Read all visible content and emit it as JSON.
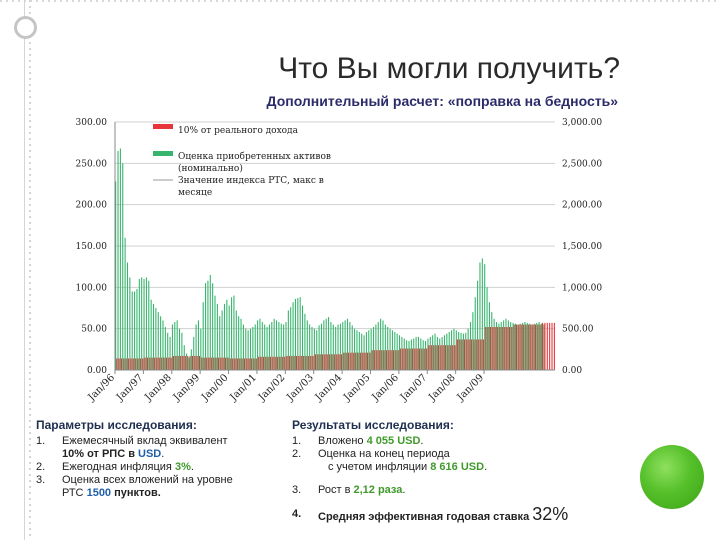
{
  "slide": {
    "title": "Что Вы могли получить?",
    "subtitle": "Дополнительный расчет: «поправка на бедность»"
  },
  "colors": {
    "contribution": "#e8353b",
    "assets": "#37b56d",
    "index_line": "#999999",
    "deco_ball": "#55c02a"
  },
  "chart_data": {
    "type": "bar",
    "x_tick_labels": [
      "Jan/96",
      "Jan/97",
      "Jan/98",
      "Jan/99",
      "Jan/00",
      "Jan/01",
      "Jan/02",
      "Jan/03",
      "Jan/04",
      "Jan/05",
      "Jan/06",
      "Jan/07",
      "Jan/08",
      "Jan/09"
    ],
    "y_left": {
      "range": [
        0,
        300
      ],
      "ticks": [
        "0.00",
        "50.00",
        "100.00",
        "150.00",
        "200.00",
        "250.00",
        "300.00"
      ]
    },
    "y_right": {
      "range": [
        0,
        3000
      ],
      "ticks": [
        "0.00",
        "500.00",
        "1,000.00",
        "1,500.00",
        "2,000.00",
        "2,500.00",
        "3,000.00"
      ]
    },
    "legend": [
      {
        "name": "10% от реального дохода",
        "color": "#e8353b"
      },
      {
        "name_lines": [
          "Оценка приобретенных активов",
          "(номинально)"
        ],
        "color": "#37b56d"
      },
      {
        "name_lines": [
          "Значение индекса РТС, макс в",
          "месяце"
        ],
        "color": "#999999"
      }
    ],
    "series": [
      {
        "name": "10% от реального дохода",
        "axis": "left",
        "values": [
          14,
          14,
          14,
          14,
          14,
          14,
          14,
          14,
          14,
          14,
          14,
          14,
          15,
          15,
          15,
          15,
          15,
          15,
          15,
          15,
          15,
          15,
          15,
          15,
          17,
          17,
          17,
          17,
          17,
          17,
          17,
          17,
          17,
          17,
          17,
          17,
          15,
          15,
          15,
          15,
          15,
          15,
          15,
          15,
          15,
          15,
          15,
          15,
          14,
          14,
          14,
          14,
          14,
          14,
          14,
          14,
          14,
          14,
          14,
          14,
          16,
          16,
          16,
          16,
          16,
          16,
          16,
          16,
          16,
          16,
          16,
          16,
          17,
          17,
          17,
          17,
          17,
          17,
          17,
          17,
          17,
          17,
          17,
          17,
          19,
          19,
          19,
          19,
          19,
          19,
          19,
          19,
          19,
          19,
          19,
          19,
          21,
          21,
          21,
          21,
          21,
          21,
          21,
          21,
          21,
          21,
          21,
          21,
          24,
          24,
          24,
          24,
          24,
          24,
          24,
          24,
          24,
          24,
          24,
          24,
          26,
          26,
          26,
          26,
          26,
          26,
          26,
          26,
          26,
          26,
          26,
          26,
          30,
          30,
          30,
          30,
          30,
          30,
          30,
          30,
          30,
          30,
          30,
          30,
          37,
          37,
          37,
          37,
          37,
          37,
          37,
          37,
          37,
          37,
          37,
          37,
          52,
          52,
          52,
          52,
          52,
          52,
          52,
          52,
          52,
          52,
          52,
          52,
          55,
          55,
          55,
          55,
          55,
          55,
          55,
          55,
          55,
          55,
          55,
          55,
          57,
          57,
          57,
          57,
          57,
          57
        ]
      },
      {
        "name": "Оценка приобретенных активов (номинально)",
        "axis": "left",
        "values": [
          228,
          265,
          268,
          250,
          160,
          130,
          112,
          95,
          95,
          98,
          110,
          112,
          110,
          112,
          108,
          85,
          80,
          75,
          70,
          65,
          60,
          52,
          45,
          40,
          55,
          58,
          60,
          50,
          45,
          30,
          20,
          15,
          25,
          40,
          55,
          60,
          50,
          82,
          105,
          108,
          115,
          105,
          90,
          80,
          65,
          72,
          80,
          85,
          78,
          88,
          90,
          72,
          65,
          62,
          55,
          50,
          48,
          50,
          52,
          55,
          60,
          62,
          58,
          55,
          52,
          55,
          58,
          62,
          60,
          58,
          56,
          55,
          58,
          72,
          76,
          82,
          86,
          87,
          88,
          78,
          68,
          60,
          55,
          52,
          50,
          48,
          54,
          56,
          60,
          62,
          64,
          58,
          55,
          52,
          55,
          56,
          58,
          60,
          62,
          58,
          54,
          50,
          48,
          46,
          44,
          42,
          46,
          48,
          50,
          52,
          55,
          58,
          62,
          60,
          55,
          52,
          50,
          48,
          46,
          44,
          42,
          40,
          38,
          36,
          35,
          37,
          38,
          40,
          40,
          38,
          36,
          35,
          38,
          40,
          42,
          44,
          40,
          38,
          40,
          42,
          44,
          46,
          48,
          50,
          48,
          46,
          45,
          44,
          45,
          50,
          58,
          70,
          88,
          108,
          130,
          135,
          128,
          100,
          82,
          70,
          62,
          58,
          56,
          58,
          60,
          62,
          60,
          58,
          57,
          56,
          55,
          56,
          57,
          58,
          57,
          56,
          55,
          56,
          57,
          58,
          56,
          55
        ]
      }
    ]
  },
  "left_section": {
    "heading": "Параметры исследования:",
    "items": [
      {
        "num": "1.",
        "line1": "Ежемесячный вклад эквивалент",
        "line2_prefix": "10% от РПС в",
        "line2_value": "USD",
        "line2_suffix": "."
      },
      {
        "num": "2.",
        "text_prefix": "Ежегодная инфляция",
        "value": "3%",
        "text_suffix": "."
      },
      {
        "num": "3.",
        "line1": "Оценка всех вложений на уровне",
        "line2_prefix": "РТС",
        "line2_value": "1500",
        "line2_suffix": "пунктов."
      }
    ]
  },
  "right_section": {
    "heading": "Результаты исследования:",
    "items": [
      {
        "num": "1.",
        "text_prefix": "Вложено",
        "value": "4 055 USD",
        "text_suffix": "."
      },
      {
        "num": "2.",
        "line1": "Оценка на конец периода",
        "line2_prefix": "с учетом инфляции",
        "line2_value": "8 616 USD",
        "line2_suffix": "."
      },
      {
        "num": "3.",
        "text_prefix": "Рост в",
        "value": "2,12 раза",
        "text_suffix": "."
      },
      {
        "num": "4.",
        "text": "Средняя эффективная годовая ставка",
        "value": "32%"
      }
    ]
  }
}
